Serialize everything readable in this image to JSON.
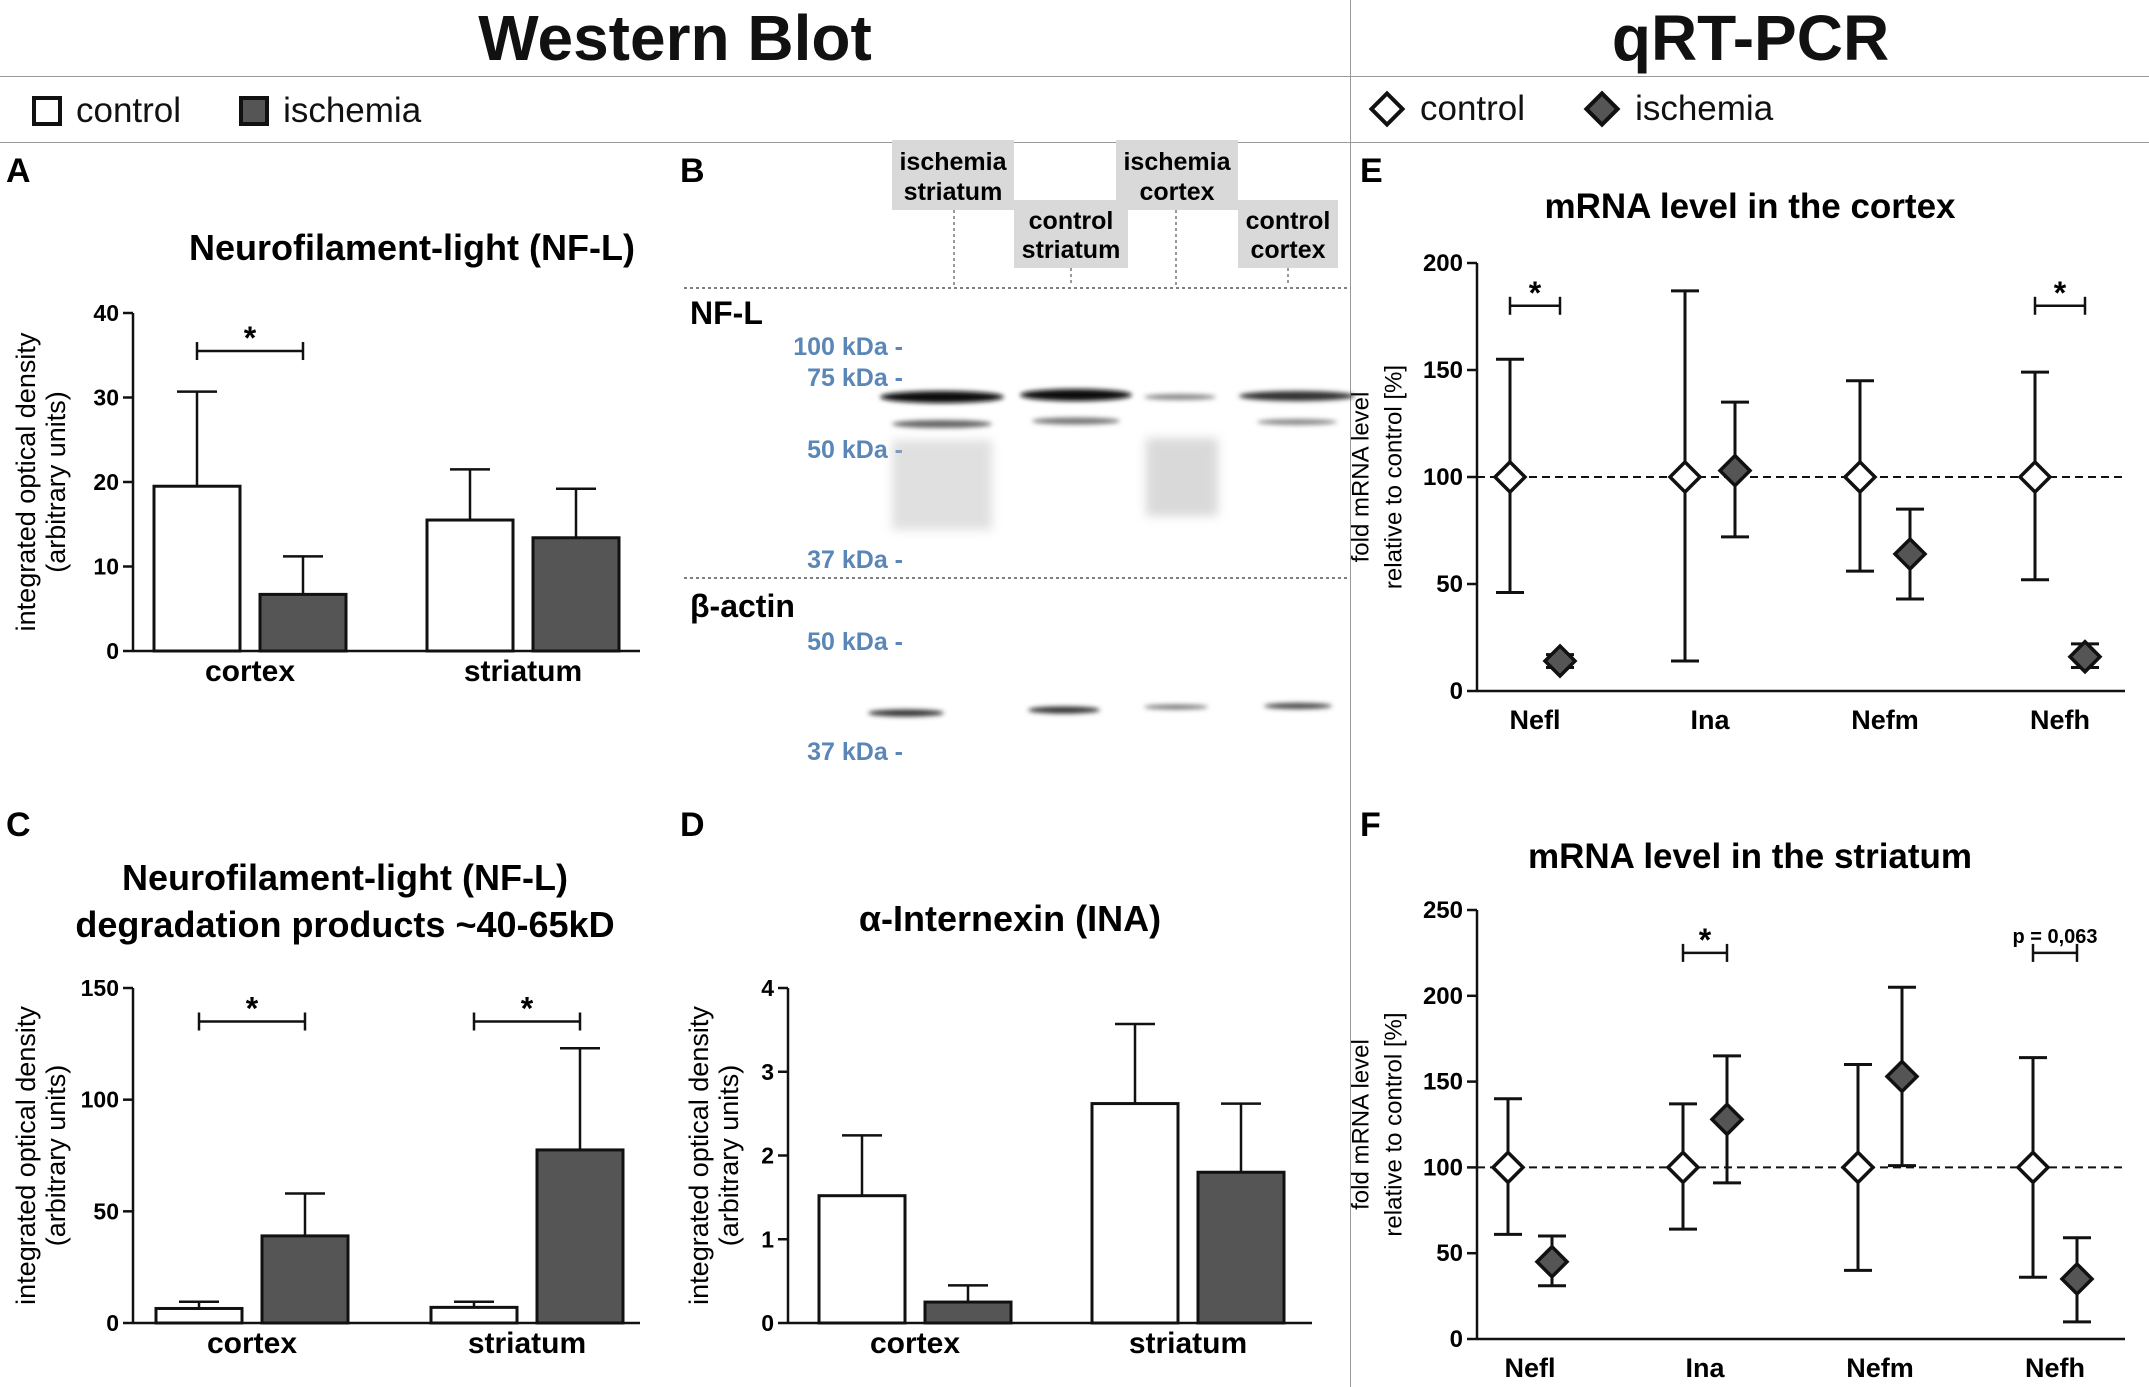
{
  "header": {
    "left_title": "Western Blot",
    "right_title": "qRT-PCR"
  },
  "legend_wb": {
    "control": "control",
    "ischemia": "ischemia"
  },
  "legend_pcr": {
    "control": "control",
    "ischemia": "ischemia"
  },
  "colors": {
    "ischemia_fill": "#555555",
    "control_fill": "#ffffff",
    "stroke": "#111111",
    "kda_label": "#5a86b8",
    "blot_bg": "#d9d9d9"
  },
  "blot": {
    "panel_letter": "B",
    "lanes": [
      {
        "line1": "ischemia",
        "line2": "striatum"
      },
      {
        "line1": "control",
        "line2": "striatum"
      },
      {
        "line1": "ischemia",
        "line2": "cortex"
      },
      {
        "line1": "control",
        "line2": "cortex"
      }
    ],
    "nfl_label": "NF-L",
    "actin_label": "β-actin",
    "nfl_markers": [
      "100 kDa -",
      "75 kDa -",
      "50 kDa -",
      "37 kDa -"
    ],
    "actin_markers": [
      "50 kDa -",
      "37 kDa -"
    ]
  },
  "chart_data": [
    {
      "id": "A",
      "panel_letter": "A",
      "type": "bar",
      "title_lines": [
        "Neurofilament-light (NF-L)"
      ],
      "ylabel_lines": [
        "integrated optical density",
        "(arbitrary units)"
      ],
      "ylim": [
        0,
        40
      ],
      "yticks": [
        0,
        10,
        20,
        30,
        40
      ],
      "categories": [
        "cortex",
        "striatum"
      ],
      "series": [
        {
          "name": "control",
          "values": [
            19.5,
            15.5
          ],
          "errors": [
            11.2,
            6
          ]
        },
        {
          "name": "ischemia",
          "values": [
            6.7,
            13.4
          ],
          "errors": [
            4.5,
            5.8
          ]
        }
      ],
      "annotations": [
        {
          "category": 0,
          "y": 35.5,
          "text": "*"
        }
      ]
    },
    {
      "id": "C",
      "panel_letter": "C",
      "type": "bar",
      "title_lines": [
        "Neurofilament-light (NF-L)",
        "degradation products ~40-65kD"
      ],
      "ylabel_lines": [
        "integrated optical density",
        "(arbitrary units)"
      ],
      "ylim": [
        0,
        150
      ],
      "yticks": [
        0,
        50,
        100,
        150
      ],
      "categories": [
        "cortex",
        "striatum"
      ],
      "series": [
        {
          "name": "control",
          "values": [
            6.5,
            7
          ],
          "errors": [
            3,
            2.5
          ]
        },
        {
          "name": "ischemia",
          "values": [
            39,
            77.5
          ],
          "errors": [
            19,
            45.5
          ]
        }
      ],
      "annotations": [
        {
          "category": 0,
          "y": 135,
          "text": "*"
        },
        {
          "category": 1,
          "y": 135,
          "text": "*"
        }
      ]
    },
    {
      "id": "D",
      "panel_letter": "D",
      "type": "bar",
      "title_lines": [
        "α-Internexin (INA)"
      ],
      "ylabel_lines": [
        "integrated optical density",
        "(arbitrary units)"
      ],
      "ylim": [
        0,
        4
      ],
      "yticks": [
        0,
        1,
        2,
        3,
        4
      ],
      "categories": [
        "cortex",
        "striatum"
      ],
      "series": [
        {
          "name": "control",
          "values": [
            1.52,
            2.62
          ],
          "errors": [
            0.72,
            0.95
          ]
        },
        {
          "name": "ischemia",
          "values": [
            0.25,
            1.8
          ],
          "errors": [
            0.2,
            0.82
          ]
        }
      ],
      "annotations": []
    },
    {
      "id": "E",
      "panel_letter": "E",
      "type": "scatter",
      "title_lines": [
        "mRNA level in the cortex"
      ],
      "ylabel_lines": [
        "fold mRNA level",
        "relative to control  [%]"
      ],
      "ylim": [
        0,
        200
      ],
      "yticks": [
        0,
        50,
        100,
        150,
        200
      ],
      "categories": [
        "Nefl",
        "Ina",
        "Nefm",
        "Nefh"
      ],
      "series": [
        {
          "name": "control",
          "values": [
            100,
            100,
            100,
            100
          ],
          "lower": [
            46,
            14,
            56,
            52
          ],
          "upper": [
            155,
            187,
            145,
            149
          ]
        },
        {
          "name": "ischemia",
          "values": [
            14,
            103,
            64,
            16
          ],
          "lower": [
            11,
            72,
            43,
            11
          ],
          "upper": [
            17,
            135,
            85,
            22
          ]
        }
      ],
      "reference_line": 100,
      "annotations": [
        {
          "category": 0,
          "y": 180,
          "text": "*"
        },
        {
          "category": 3,
          "y": 180,
          "text": "*"
        }
      ]
    },
    {
      "id": "F",
      "panel_letter": "F",
      "type": "scatter",
      "title_lines": [
        "mRNA level in the striatum"
      ],
      "ylabel_lines": [
        "fold mRNA level",
        "relative to control  [%]"
      ],
      "ylim": [
        0,
        250
      ],
      "yticks": [
        0,
        50,
        100,
        150,
        200,
        250
      ],
      "categories": [
        "Nefl",
        "Ina",
        "Nefm",
        "Nefh"
      ],
      "series": [
        {
          "name": "control",
          "values": [
            100,
            100,
            100,
            100
          ],
          "lower": [
            61,
            64,
            40,
            36
          ],
          "upper": [
            140,
            137,
            160,
            164
          ]
        },
        {
          "name": "ischemia",
          "values": [
            45,
            128,
            153,
            35
          ],
          "lower": [
            31,
            91,
            101,
            10
          ],
          "upper": [
            60,
            165,
            205,
            59
          ]
        }
      ],
      "reference_line": 100,
      "annotations": [
        {
          "category": 1,
          "y": 225,
          "text": "*"
        },
        {
          "category": 3,
          "y": 225,
          "text": "p = 0,063"
        }
      ]
    }
  ]
}
